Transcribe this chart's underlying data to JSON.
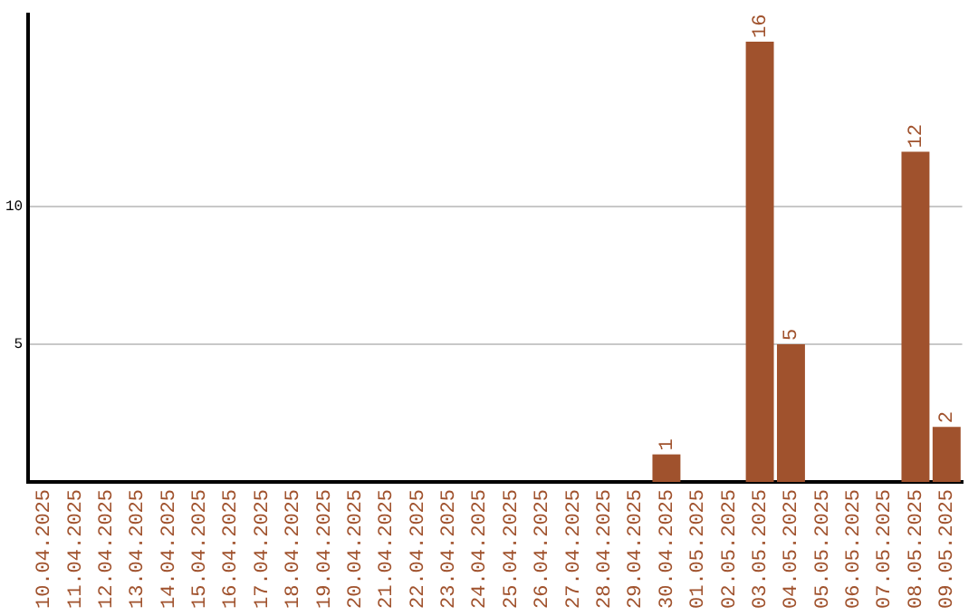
{
  "chart_data": {
    "type": "bar",
    "categories": [
      "10.04.2025",
      "11.04.2025",
      "12.04.2025",
      "13.04.2025",
      "14.04.2025",
      "15.04.2025",
      "16.04.2025",
      "17.04.2025",
      "18.04.2025",
      "19.04.2025",
      "20.04.2025",
      "21.04.2025",
      "22.04.2025",
      "23.04.2025",
      "24.04.2025",
      "25.04.2025",
      "26.04.2025",
      "27.04.2025",
      "28.04.2025",
      "29.04.2025",
      "30.04.2025",
      "01.05.2025",
      "02.05.2025",
      "03.05.2025",
      "04.05.2025",
      "05.05.2025",
      "06.05.2025",
      "07.05.2025",
      "08.05.2025",
      "09.05.2025"
    ],
    "values": [
      0,
      0,
      0,
      0,
      0,
      0,
      0,
      0,
      0,
      0,
      0,
      0,
      0,
      0,
      0,
      0,
      0,
      0,
      0,
      0,
      1,
      0,
      0,
      16,
      5,
      0,
      0,
      0,
      12,
      2
    ],
    "value_labels": [
      null,
      null,
      null,
      null,
      null,
      null,
      null,
      null,
      null,
      null,
      null,
      null,
      null,
      null,
      null,
      null,
      null,
      null,
      null,
      null,
      "1",
      null,
      null,
      "16",
      "5",
      null,
      null,
      null,
      "12",
      "2"
    ],
    "color": "#a0522d",
    "ylim": [
      0,
      17
    ],
    "yticks": [
      5,
      10
    ],
    "grid": "y",
    "legend": false
  }
}
